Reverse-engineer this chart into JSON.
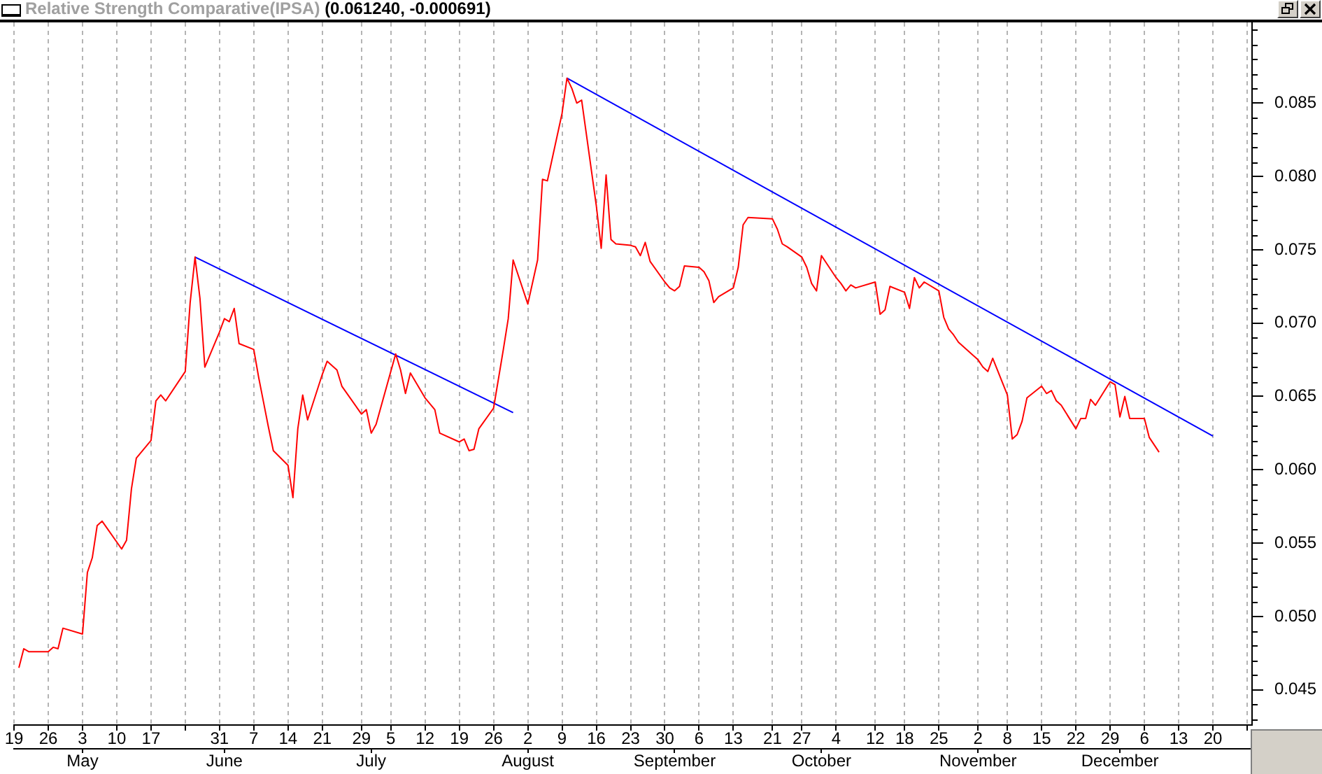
{
  "chart_data": {
    "type": "line",
    "title": "Relative Strength Comparative(IPSA)",
    "subtitle": "(0.061240, -0.000691)",
    "xlim": [
      "--04-19",
      "--12-28"
    ],
    "xticks": [
      {
        "value": "--04-19",
        "label": "19"
      },
      {
        "value": "--04-26",
        "label": "26"
      },
      {
        "value": "--05-03",
        "label": "3"
      },
      {
        "value": "--05-10",
        "label": "10"
      },
      {
        "value": "--05-17",
        "label": "17"
      },
      {
        "value": "--05-24",
        "label": null
      },
      {
        "value": "--05-31",
        "label": "31"
      },
      {
        "value": "--06-07",
        "label": "7"
      },
      {
        "value": "--06-14",
        "label": "14"
      },
      {
        "value": "--06-21",
        "label": "21"
      },
      {
        "value": "--06-29",
        "label": "29"
      },
      {
        "value": "--07-05",
        "label": "5"
      },
      {
        "value": "--07-12",
        "label": "12"
      },
      {
        "value": "--07-19",
        "label": "19"
      },
      {
        "value": "--07-26",
        "label": "26"
      },
      {
        "value": "--08-02",
        "label": "2"
      },
      {
        "value": "--08-09",
        "label": "9"
      },
      {
        "value": "--08-16",
        "label": "16"
      },
      {
        "value": "--08-23",
        "label": "23"
      },
      {
        "value": "--08-30",
        "label": "30"
      },
      {
        "value": "--09-06",
        "label": "6"
      },
      {
        "value": "--09-13",
        "label": "13"
      },
      {
        "value": "--09-21",
        "label": "21"
      },
      {
        "value": "--09-27",
        "label": "27"
      },
      {
        "value": "--10-04",
        "label": "4"
      },
      {
        "value": "--10-12",
        "label": "12"
      },
      {
        "value": "--10-18",
        "label": "18"
      },
      {
        "value": "--10-25",
        "label": "25"
      },
      {
        "value": "--11-02",
        "label": "2"
      },
      {
        "value": "--11-08",
        "label": "8"
      },
      {
        "value": "--11-15",
        "label": "15"
      },
      {
        "value": "--11-22",
        "label": "22"
      },
      {
        "value": "--11-29",
        "label": "29"
      },
      {
        "value": "--12-06",
        "label": "6"
      },
      {
        "value": "--12-13",
        "label": "13"
      },
      {
        "value": "--12-20",
        "label": "20"
      },
      {
        "value": "--12-27",
        "label": null
      }
    ],
    "x2lim": [
      "--04-19",
      "--12-28"
    ],
    "x2ticks": [
      {
        "value": "--05-03",
        "label": "May"
      },
      {
        "value": "--06-01",
        "label": "June"
      },
      {
        "value": "--07-01",
        "label": "July"
      },
      {
        "value": "--08-02",
        "label": "August"
      },
      {
        "value": "--09-01",
        "label": "September"
      },
      {
        "value": "--10-01",
        "label": "October"
      },
      {
        "value": "--11-02",
        "label": "November"
      },
      {
        "value": "--12-01",
        "label": "December"
      }
    ],
    "ylim": [
      0.0426,
      0.0905
    ],
    "yticks": [
      {
        "value": 0.043,
        "label": null
      },
      {
        "value": 0.044,
        "label": null
      },
      0.045,
      {
        "value": 0.046,
        "label": null
      },
      {
        "value": 0.047,
        "label": null
      },
      {
        "value": 0.048,
        "label": null
      },
      {
        "value": 0.049,
        "label": null
      },
      {
        "value": 0.05,
        "label": "0.050"
      },
      {
        "value": 0.051,
        "label": null
      },
      {
        "value": 0.052,
        "label": null
      },
      {
        "value": 0.053,
        "label": null
      },
      {
        "value": 0.054,
        "label": null
      },
      0.055,
      {
        "value": 0.056,
        "label": null
      },
      {
        "value": 0.057,
        "label": null
      },
      {
        "value": 0.058,
        "label": null
      },
      {
        "value": 0.059,
        "label": null
      },
      {
        "value": 0.06,
        "label": "0.060"
      },
      {
        "value": 0.061,
        "label": null
      },
      {
        "value": 0.062,
        "label": null
      },
      {
        "value": 0.063,
        "label": null
      },
      {
        "value": 0.064,
        "label": null
      },
      0.065,
      {
        "value": 0.066,
        "label": null
      },
      {
        "value": 0.067,
        "label": null
      },
      {
        "value": 0.068,
        "label": null
      },
      {
        "value": 0.069,
        "label": null
      },
      {
        "value": 0.07,
        "label": "0.070"
      },
      {
        "value": 0.071,
        "label": null
      },
      {
        "value": 0.072,
        "label": null
      },
      {
        "value": 0.073,
        "label": null
      },
      {
        "value": 0.074,
        "label": null
      },
      0.075,
      {
        "value": 0.076,
        "label": null
      },
      {
        "value": 0.077,
        "label": null
      },
      {
        "value": 0.078,
        "label": null
      },
      {
        "value": 0.079,
        "label": null
      },
      {
        "value": 0.08,
        "label": "0.080"
      },
      {
        "value": 0.081,
        "label": null
      },
      {
        "value": 0.082,
        "label": null
      },
      {
        "value": 0.083,
        "label": null
      },
      {
        "value": 0.084,
        "label": null
      },
      0.085,
      {
        "value": 0.086,
        "label": null
      },
      {
        "value": 0.087,
        "label": null
      },
      {
        "value": 0.088,
        "label": null
      },
      {
        "value": 0.089,
        "label": null
      },
      {
        "value": 0.09,
        "label": null
      }
    ],
    "grid": "x",
    "series": [
      {
        "color": "#ff0000",
        "x": [
          "--04-20",
          "--04-21",
          "--04-22",
          "--04-26",
          "--04-27",
          "--04-28",
          "--04-29",
          "--05-03",
          "--05-04",
          "--05-05",
          "--05-06",
          "--05-07",
          "--05-11",
          "--05-12",
          "--05-13",
          "--05-14",
          "--05-17",
          "--05-18",
          "--05-19",
          "--05-20",
          "--05-24",
          "--05-25",
          "--05-26",
          "--05-27",
          "--05-28",
          "--05-31",
          "--06-01",
          "--06-02",
          "--06-03",
          "--06-04",
          "--06-07",
          "--06-08",
          "--06-09",
          "--06-10",
          "--06-11",
          "--06-14",
          "--06-15",
          "--06-16",
          "--06-17",
          "--06-18",
          "--06-21",
          "--06-22",
          "--06-24",
          "--06-25",
          "--06-29",
          "--06-30",
          "--07-01",
          "--07-02",
          "--07-06",
          "--07-07",
          "--07-08",
          "--07-09",
          "--07-12",
          "--07-14",
          "--07-15",
          "--07-19",
          "--07-20",
          "--07-21",
          "--07-22",
          "--07-23",
          "--07-26",
          "--07-28",
          "--07-29",
          "--07-30",
          "--08-02",
          "--08-03",
          "--08-04",
          "--08-05",
          "--08-06",
          "--08-09",
          "--08-10",
          "--08-11",
          "--08-12",
          "--08-13",
          "--08-16",
          "--08-17",
          "--08-18",
          "--08-19",
          "--08-20",
          "--08-23",
          "--08-24",
          "--08-25",
          "--08-26",
          "--08-27",
          "--08-30",
          "--08-31",
          "--09-01",
          "--09-02",
          "--09-03",
          "--09-06",
          "--09-07",
          "--09-08",
          "--09-09",
          "--09-10",
          "--09-13",
          "--09-14",
          "--09-15",
          "--09-16",
          "--09-21",
          "--09-22",
          "--09-23",
          "--09-24",
          "--09-27",
          "--09-28",
          "--09-29",
          "--09-30",
          "--10-01",
          "--10-04",
          "--10-05",
          "--10-06",
          "--10-07",
          "--10-08",
          "--10-12",
          "--10-13",
          "--10-14",
          "--10-15",
          "--10-18",
          "--10-19",
          "--10-20",
          "--10-21",
          "--10-22",
          "--10-25",
          "--10-26",
          "--10-27",
          "--10-28",
          "--10-29",
          "--11-02",
          "--11-03",
          "--11-04",
          "--11-05",
          "--11-08",
          "--11-09",
          "--11-10",
          "--11-11",
          "--11-12",
          "--11-15",
          "--11-16",
          "--11-17",
          "--11-18",
          "--11-19",
          "--11-22",
          "--11-23",
          "--11-24",
          "--11-25",
          "--11-26",
          "--11-29",
          "--11-30",
          "--12-01",
          "--12-02",
          "--12-03",
          "--12-06",
          "--12-07",
          "--12-09"
        ],
        "values": [
          0.0465,
          0.0478,
          0.0476,
          0.0476,
          0.0479,
          0.0478,
          0.0492,
          0.0488,
          0.053,
          0.054,
          0.0562,
          0.0565,
          0.0546,
          0.0552,
          0.0587,
          0.0608,
          0.062,
          0.0647,
          0.0651,
          0.0647,
          0.0667,
          0.0714,
          0.0745,
          0.0717,
          0.067,
          0.0694,
          0.0703,
          0.0701,
          0.071,
          0.0686,
          0.0682,
          0.0663,
          0.0646,
          0.0629,
          0.0613,
          0.0603,
          0.0581,
          0.0628,
          0.0651,
          0.0634,
          0.0665,
          0.0674,
          0.0668,
          0.0657,
          0.0638,
          0.0641,
          0.0625,
          0.0631,
          0.0679,
          0.0668,
          0.0652,
          0.0666,
          0.0649,
          0.0641,
          0.0625,
          0.0619,
          0.0621,
          0.0613,
          0.0614,
          0.0628,
          0.0642,
          0.0682,
          0.0703,
          0.0743,
          0.0713,
          0.0728,
          0.0743,
          0.0798,
          0.0797,
          0.0843,
          0.0867,
          0.086,
          0.085,
          0.0852,
          0.078,
          0.0751,
          0.0801,
          0.0757,
          0.0754,
          0.0753,
          0.0752,
          0.0746,
          0.0755,
          0.0742,
          0.0728,
          0.0724,
          0.0722,
          0.0725,
          0.0739,
          0.0738,
          0.0735,
          0.0729,
          0.0714,
          0.0718,
          0.0724,
          0.0738,
          0.0767,
          0.0772,
          0.0771,
          0.0764,
          0.0754,
          0.0752,
          0.0745,
          0.0738,
          0.0727,
          0.0722,
          0.0746,
          0.0731,
          0.0727,
          0.0722,
          0.0726,
          0.0724,
          0.0728,
          0.0706,
          0.0709,
          0.0725,
          0.0721,
          0.071,
          0.0731,
          0.0724,
          0.0728,
          0.0722,
          0.0704,
          0.0696,
          0.0692,
          0.0687,
          0.0675,
          0.067,
          0.0667,
          0.0676,
          0.0651,
          0.0621,
          0.0624,
          0.0633,
          0.0649,
          0.0657,
          0.0652,
          0.0654,
          0.0647,
          0.0644,
          0.0628,
          0.0635,
          0.0635,
          0.0648,
          0.0644,
          0.066,
          0.0658,
          0.0636,
          0.065,
          0.0635,
          0.0635,
          0.0622,
          0.0612
        ]
      },
      {
        "color": "#0000ff",
        "x": [
          "--05-26",
          "--07-30"
        ],
        "values": [
          0.0745,
          0.0639
        ]
      },
      {
        "color": "#0000ff",
        "x": [
          "--08-10",
          "--12-20"
        ],
        "values": [
          0.0867,
          0.0623
        ]
      }
    ]
  }
}
